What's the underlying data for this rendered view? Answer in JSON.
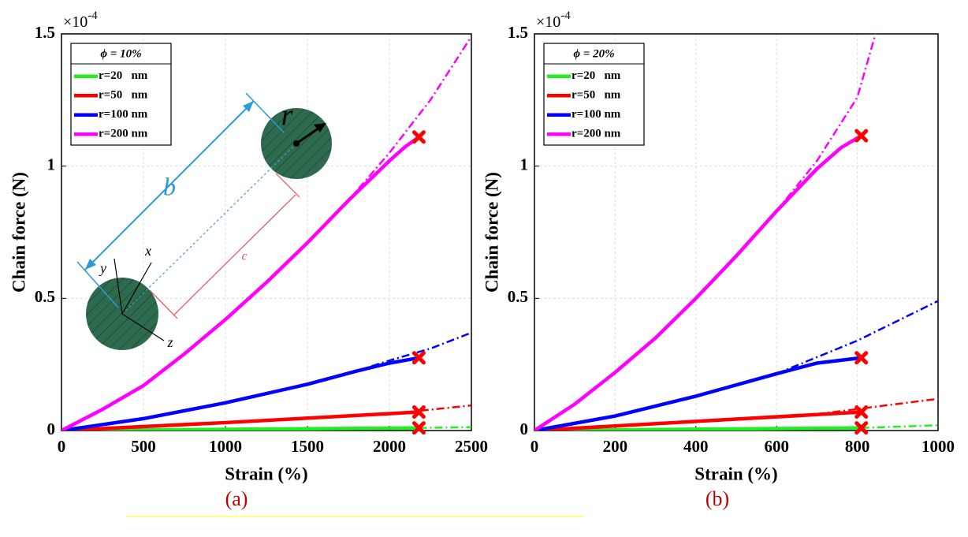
{
  "chart_data": [
    {
      "type": "line",
      "caption": "(a)",
      "x_label": "Strain (%)",
      "y_label": "Chain force (N)",
      "y_scale_label": "×10",
      "y_scale_exponent": "-4",
      "legend_title": "ϕ = 10%",
      "legend_corner": "upper left",
      "grid": true,
      "inset_labels": [
        "b",
        "c",
        "r",
        "x",
        "y",
        "z"
      ],
      "xlim": [
        0,
        2500
      ],
      "xticks": [
        0,
        500,
        1000,
        1500,
        2000,
        2500
      ],
      "ylim": [
        0,
        1.5
      ],
      "yticks": [
        0,
        0.5,
        1,
        1.5
      ],
      "failure_color": "#ff0000",
      "series": [
        {
          "name": "r=20   nm",
          "color": "#22ee22",
          "x": [
            0,
            2180
          ],
          "values": [
            0,
            0.01
          ],
          "extension_x": [
            2180,
            2500
          ],
          "extension_values": [
            0.01,
            0.013
          ],
          "failure_x": 2180,
          "failure_value": 0.01
        },
        {
          "name": "r=50   nm",
          "color": "#ff0000",
          "x": [
            0,
            1000,
            2180
          ],
          "values": [
            0,
            0.03,
            0.07
          ],
          "extension_x": [
            2000,
            2500
          ],
          "extension_values": [
            0.063,
            0.095
          ],
          "failure_x": 2180,
          "failure_value": 0.07
        },
        {
          "name": "r=100 nm",
          "color": "#0000ff",
          "x": [
            0,
            500,
            1000,
            1500,
            1800,
            2000,
            2180
          ],
          "values": [
            0,
            0.045,
            0.105,
            0.175,
            0.225,
            0.255,
            0.275
          ],
          "extension_x": [
            1800,
            2000,
            2250,
            2500
          ],
          "extension_values": [
            0.225,
            0.265,
            0.31,
            0.37
          ],
          "failure_x": 2180,
          "failure_value": 0.275
        },
        {
          "name": "r=200 nm",
          "color": "#ff00ff",
          "x": [
            0,
            250,
            500,
            750,
            1000,
            1250,
            1500,
            1750,
            2000,
            2100,
            2180
          ],
          "values": [
            0,
            0.08,
            0.17,
            0.29,
            0.42,
            0.56,
            0.71,
            0.87,
            1.02,
            1.075,
            1.11
          ],
          "extension_x": [
            1750,
            2000,
            2250,
            2500
          ],
          "extension_values": [
            0.87,
            1.05,
            1.25,
            1.49
          ],
          "failure_x": 2180,
          "failure_value": 1.11
        }
      ]
    },
    {
      "type": "line",
      "caption": "(b)",
      "x_label": "Strain (%)",
      "y_label": "Chain force (N)",
      "y_scale_label": "×10",
      "y_scale_exponent": "-4",
      "legend_title": "ϕ = 20%",
      "legend_corner": "upper left",
      "grid": true,
      "xlim": [
        0,
        1000
      ],
      "xticks": [
        0,
        200,
        400,
        600,
        800,
        1000
      ],
      "ylim": [
        0,
        1.5
      ],
      "yticks": [
        0,
        0.5,
        1,
        1.5
      ],
      "failure_color": "#ff0000",
      "series": [
        {
          "name": "r=20   nm",
          "color": "#22ee22",
          "x": [
            0,
            810
          ],
          "values": [
            0,
            0.01
          ],
          "extension_x": [
            810,
            1000
          ],
          "extension_values": [
            0.01,
            0.02
          ],
          "failure_x": 810,
          "failure_value": 0.01
        },
        {
          "name": "r=50   nm",
          "color": "#ff0000",
          "x": [
            0,
            810
          ],
          "values": [
            0,
            0.07
          ],
          "extension_x": [
            700,
            1000
          ],
          "extension_values": [
            0.062,
            0.12
          ],
          "failure_x": 810,
          "failure_value": 0.07
        },
        {
          "name": "r=100 nm",
          "color": "#0000ff",
          "x": [
            0,
            200,
            400,
            600,
            700,
            810
          ],
          "values": [
            0,
            0.055,
            0.13,
            0.215,
            0.255,
            0.275
          ],
          "extension_x": [
            600,
            800,
            1000
          ],
          "extension_values": [
            0.215,
            0.34,
            0.49
          ],
          "failure_x": 810,
          "failure_value": 0.275
        },
        {
          "name": "r=200 nm",
          "color": "#ff00ff",
          "x": [
            0,
            100,
            200,
            300,
            400,
            500,
            600,
            700,
            760,
            810
          ],
          "values": [
            0,
            0.1,
            0.22,
            0.35,
            0.5,
            0.66,
            0.83,
            0.99,
            1.07,
            1.115
          ],
          "extension_x": [
            600,
            700,
            800,
            845
          ],
          "extension_values": [
            0.83,
            1.02,
            1.26,
            1.5
          ],
          "failure_x": 810,
          "failure_value": 1.115
        }
      ]
    }
  ]
}
